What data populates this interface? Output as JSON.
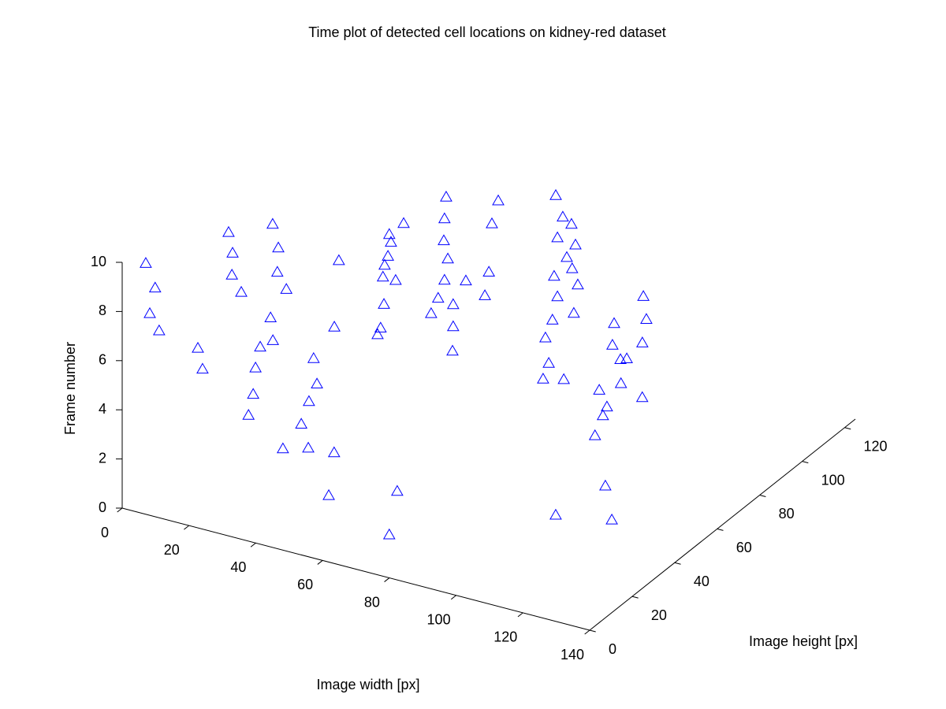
{
  "chart_data": {
    "type": "scatter3d",
    "title": "Time plot of detected cell locations on kidney-red dataset",
    "xlabel": "Image width [px]",
    "ylabel": "Image height [px]",
    "zlabel": "Frame number",
    "xlim": [
      0,
      140
    ],
    "ylim": [
      0,
      125
    ],
    "zlim": [
      0,
      10
    ],
    "xticks": [
      0,
      20,
      40,
      60,
      80,
      100,
      120,
      140
    ],
    "yticks": [
      0,
      20,
      40,
      60,
      80,
      100,
      120
    ],
    "zticks": [
      0,
      2,
      4,
      6,
      8,
      10
    ],
    "marker": "triangle",
    "color": "#0000ff",
    "x": [
      0.7,
      3.5,
      1.9,
      4.7,
      16.3,
      17.7,
      6.4,
      7.6,
      7.4,
      10.2,
      19.6,
      21.3,
      21.0,
      23.7,
      31.7,
      32.4,
      28.6,
      27.2,
      26.5,
      25.1,
      35.4,
      43.0,
      44.6,
      45.6,
      43.2,
      40.9,
      50.8,
      26.7,
      57.1,
      55.5,
      41.8,
      42.3,
      41.4,
      40.4,
      39.9,
      43.7,
      46.1,
      40.2,
      39.2,
      38.3,
      76.0,
      76.8,
      46.1,
      45.6,
      45.4,
      46.6,
      45.6,
      43.7,
      41.6,
      48.2,
      48.2,
      48.0,
      52.0,
      61.7,
      59.8,
      58.9,
      57.7,
      66.2,
      68.3,
      70.9,
      66.7,
      72.1,
      69.5,
      71.1,
      65.7,
      72.8,
      66.7,
      71.6,
      65.2,
      63.1,
      64.1,
      62.4,
      68.6,
      117.1,
      77.3,
      76.8,
      81.1,
      79.2,
      82.4,
      84.7,
      83.5,
      103.4,
      125.6,
      133.9,
      88.9,
      79.7,
      80.6,
      79.4,
      92.1
    ],
    "y": [
      10,
      10,
      10,
      10,
      10,
      10,
      40,
      40,
      40,
      40,
      40,
      40,
      40,
      40,
      20,
      20,
      20,
      20,
      20,
      20,
      20,
      20,
      20,
      20,
      20,
      20,
      20,
      60,
      10,
      10,
      60,
      60,
      60,
      60,
      60,
      60,
      60,
      60,
      60,
      60,
      10,
      5,
      80,
      80,
      80,
      80,
      80,
      80,
      80,
      80,
      80,
      80,
      80,
      80,
      80,
      80,
      80,
      100,
      100,
      100,
      100,
      100,
      100,
      100,
      100,
      100,
      100,
      100,
      100,
      100,
      100,
      100,
      100,
      20,
      110,
      110,
      110,
      110,
      95,
      95,
      95,
      60,
      30,
      20,
      95,
      120,
      120,
      120,
      100
    ],
    "z": [
      9.3,
      8.4,
      7.3,
      6.7,
      6.4,
      5.6,
      8.7,
      7.9,
      7.0,
      6.4,
      9.5,
      8.6,
      7.6,
      7.0,
      7.5,
      6.6,
      6.2,
      5.3,
      4.2,
      3.3,
      2.3,
      2.6,
      6.3,
      5.3,
      4.5,
      3.5,
      7.8,
      6.9,
      3.6,
      1.8,
      8.5,
      8.2,
      7.6,
      7.2,
      6.7,
      6.7,
      9.1,
      5.6,
      4.6,
      4.3,
      2.7,
      1.3,
      8.8,
      7.9,
      7.0,
      6.3,
      5.4,
      4.6,
      3.9,
      4.5,
      3.6,
      2.6,
      5.6,
      9.2,
      8.2,
      6.2,
      5.2,
      8.2,
      7.4,
      7.2,
      6.5,
      6.4,
      5.8,
      5.4,
      4.9,
      4.8,
      4.1,
      3.6,
      3.1,
      2.3,
      1.3,
      0.6,
      0.8,
      2.5,
      2.7,
      1.8,
      1.4,
      1.3,
      1.2,
      0.6,
      0.2,
      2.5,
      3.3,
      2.9,
      1.7,
      3.2,
      2.3,
      1.3,
      0.9
    ]
  }
}
